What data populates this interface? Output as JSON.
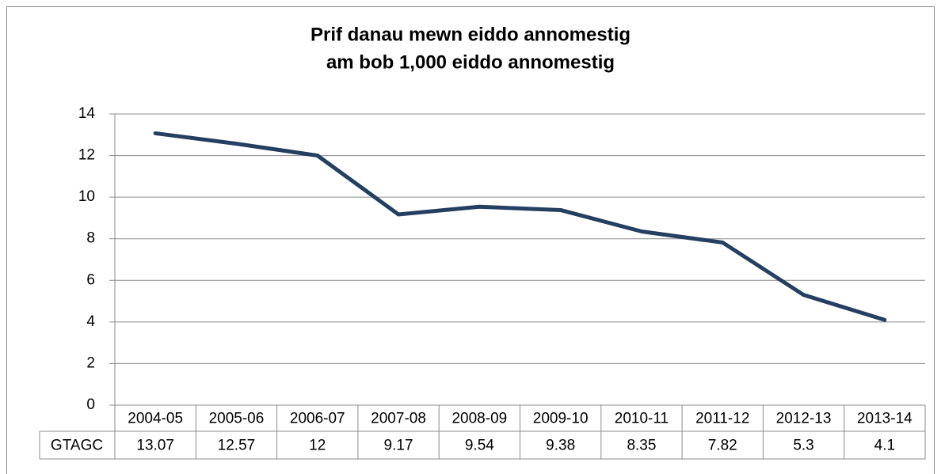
{
  "chart_data": {
    "type": "line",
    "title": [
      "Prif danau mewn eiddo annomestig",
      "am bob 1,000 eiddo annomestig"
    ],
    "categories": [
      "2004-05",
      "2005-06",
      "2006-07",
      "2007-08",
      "2008-09",
      "2009-10",
      "2010-11",
      "2011-12",
      "2012-13",
      "2013-14"
    ],
    "series": [
      {
        "name": "GTAGC",
        "color": "#243f60",
        "values": [
          13.07,
          12.57,
          12,
          9.17,
          9.54,
          9.38,
          8.35,
          7.82,
          5.3,
          4.1
        ]
      }
    ],
    "ylim": [
      0,
      14
    ],
    "yticks": [
      0,
      2,
      4,
      6,
      8,
      10,
      12,
      14
    ],
    "grid": true
  }
}
